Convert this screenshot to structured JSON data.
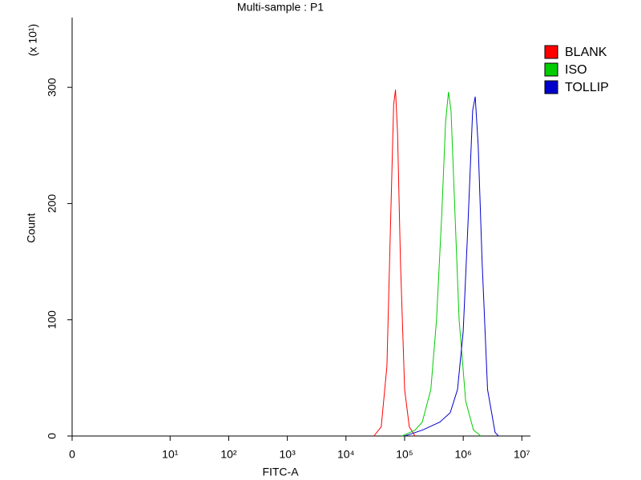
{
  "chart_data": {
    "type": "line",
    "title": "Multi-sample : P1",
    "x_label": "FITC-A",
    "y_label": "Count",
    "y_multiplier": "(x 10¹)",
    "xscale": "biexponential",
    "xlim": [
      0,
      14000000
    ],
    "xticks": [
      0,
      {
        "value": 10,
        "label": "10¹"
      },
      {
        "value": 100,
        "label": "10²"
      },
      {
        "value": 1000,
        "label": "10³"
      },
      {
        "value": 10000,
        "label": "10⁴"
      },
      {
        "value": 100000,
        "label": "10⁵"
      },
      {
        "value": 1000000,
        "label": "10⁶"
      },
      {
        "value": 10000000,
        "label": "10⁷"
      }
    ],
    "ylim": [
      0,
      360
    ],
    "yticks": [
      0,
      100,
      200,
      300
    ],
    "legend": "right",
    "series": [
      {
        "name": "BLANK",
        "color": "#ff0000",
        "x": [
          30000,
          40000,
          50000,
          58000,
          65000,
          70000,
          76000,
          85000,
          100000,
          120000,
          150000
        ],
        "values": [
          0,
          8,
          60,
          190,
          285,
          298,
          260,
          150,
          40,
          8,
          0
        ]
      },
      {
        "name": "ISO",
        "color": "#00cc00",
        "x": [
          90000,
          150000,
          200000,
          280000,
          350000,
          430000,
          500000,
          560000,
          620000,
          700000,
          850000,
          1100000,
          1500000,
          2000000
        ],
        "values": [
          0,
          5,
          12,
          40,
          100,
          190,
          270,
          296,
          280,
          210,
          100,
          30,
          5,
          0
        ]
      },
      {
        "name": "TOLLIP",
        "color": "#0000cc",
        "x": [
          100000,
          200000,
          400000,
          600000,
          800000,
          1000000,
          1200000,
          1450000,
          1600000,
          1800000,
          2100000,
          2600000,
          3500000,
          4000000
        ],
        "values": [
          0,
          5,
          12,
          20,
          40,
          90,
          180,
          280,
          292,
          250,
          150,
          40,
          3,
          0
        ]
      }
    ]
  }
}
